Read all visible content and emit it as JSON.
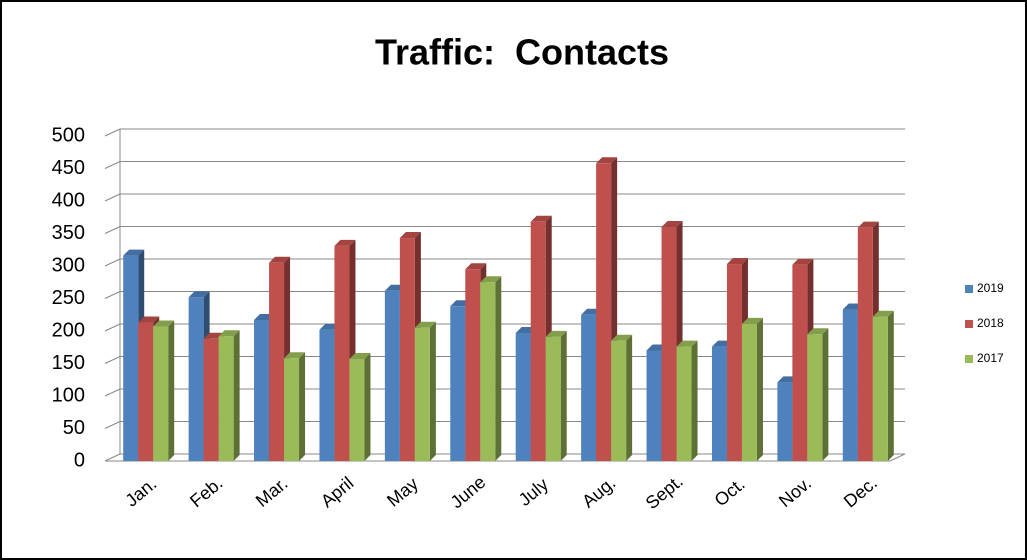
{
  "chart_data": {
    "type": "bar",
    "title": "Traffic:  Contacts",
    "categories": [
      "Jan.",
      "Feb.",
      "Mar.",
      "April",
      "May",
      "June",
      "July",
      "Aug.",
      "Sept.",
      "Oct.",
      "Nov.",
      "Dec."
    ],
    "series": [
      {
        "name": "2019",
        "color": "#4f81bd",
        "values": [
          316,
          252,
          217,
          202,
          262,
          238,
          197,
          225,
          170,
          176,
          121,
          233
        ]
      },
      {
        "name": "2018",
        "color": "#c0504d",
        "values": [
          213,
          188,
          305,
          331,
          343,
          295,
          368,
          458,
          360,
          303,
          302,
          359
        ]
      },
      {
        "name": "2017",
        "color": "#9bbb59",
        "values": [
          207,
          192,
          158,
          157,
          205,
          275,
          191,
          185,
          176,
          211,
          195,
          222
        ]
      }
    ],
    "ylim": [
      0,
      500
    ],
    "yticks": [
      0,
      50,
      100,
      150,
      200,
      250,
      300,
      350,
      400,
      450,
      500
    ],
    "grid": true,
    "legend": "right"
  }
}
